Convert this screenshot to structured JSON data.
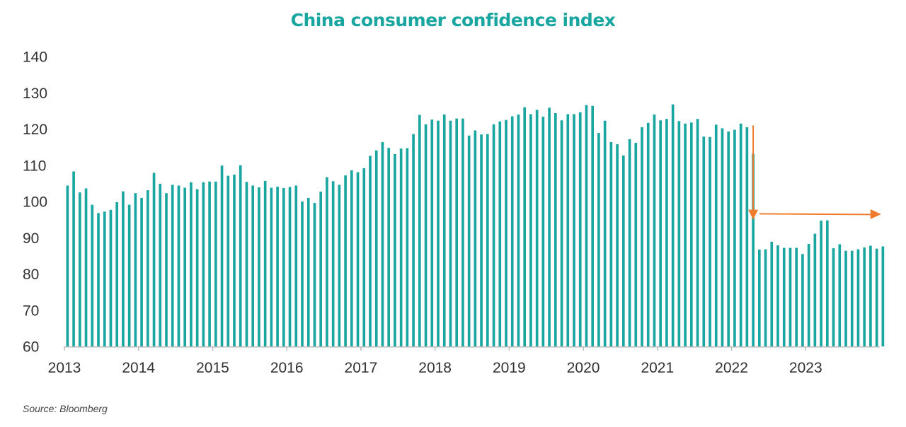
{
  "chart_data": {
    "type": "bar",
    "title": "China consumer confidence index",
    "source": "Source: Bloomberg",
    "ylim": [
      60,
      140
    ],
    "yticks": [
      60,
      70,
      80,
      90,
      100,
      110,
      120,
      130,
      140
    ],
    "xtick_labels": [
      "2013",
      "2014",
      "2015",
      "2016",
      "2017",
      "2018",
      "2019",
      "2020",
      "2021",
      "2022",
      "2023"
    ],
    "start": "2013-01",
    "frequency": "monthly",
    "grid": false,
    "legend": "none",
    "bar_color": "#1aa6a0",
    "annotation_color": "#f07b2a",
    "annotations": [
      {
        "type": "down-arrow",
        "at": "2022-04"
      },
      {
        "type": "right-arrow",
        "from": "2022-05",
        "to": "2023-12",
        "level": 96.5
      }
    ],
    "values": [
      104.4,
      108.3,
      102.5,
      103.6,
      99.1,
      96.8,
      97.2,
      97.7,
      99.8,
      102.8,
      99.1,
      102.3,
      101.0,
      103.1,
      107.9,
      104.9,
      102.3,
      104.6,
      104.4,
      103.8,
      105.3,
      103.4,
      105.3,
      105.5,
      105.5,
      109.9,
      107.1,
      107.4,
      110.0,
      105.4,
      104.4,
      103.9,
      105.7,
      103.8,
      104.1,
      103.7,
      104.0,
      104.4,
      100.0,
      101.0,
      99.6,
      102.7,
      106.7,
      105.6,
      104.6,
      107.2,
      108.6,
      108.1,
      109.2,
      112.6,
      114.1,
      116.4,
      114.8,
      113.1,
      114.6,
      114.7,
      118.6,
      123.9,
      121.3,
      122.6,
      122.3,
      124.0,
      122.3,
      122.9,
      122.9,
      118.2,
      119.6,
      118.5,
      118.6,
      121.3,
      122.1,
      122.5,
      123.5,
      124.0,
      126.0,
      124.1,
      125.3,
      123.4,
      125.9,
      124.4,
      122.4,
      124.1,
      124.1,
      124.6,
      126.6,
      126.4,
      118.9,
      122.3,
      116.4,
      115.8,
      112.7,
      117.2,
      116.2,
      120.5,
      121.7,
      124.0,
      122.4,
      122.8,
      126.8,
      122.2,
      121.5,
      121.8,
      122.8,
      117.9,
      117.8,
      121.2,
      120.2,
      119.3,
      119.8,
      121.5,
      120.5,
      113.2,
      86.7,
      86.8,
      88.9,
      87.9,
      87.2,
      87.2,
      87.2,
      85.5,
      88.3,
      91.1,
      94.7,
      94.8,
      87.1,
      88.2,
      86.4,
      86.4,
      86.8,
      87.3,
      87.8,
      87.0,
      87.6
    ]
  }
}
